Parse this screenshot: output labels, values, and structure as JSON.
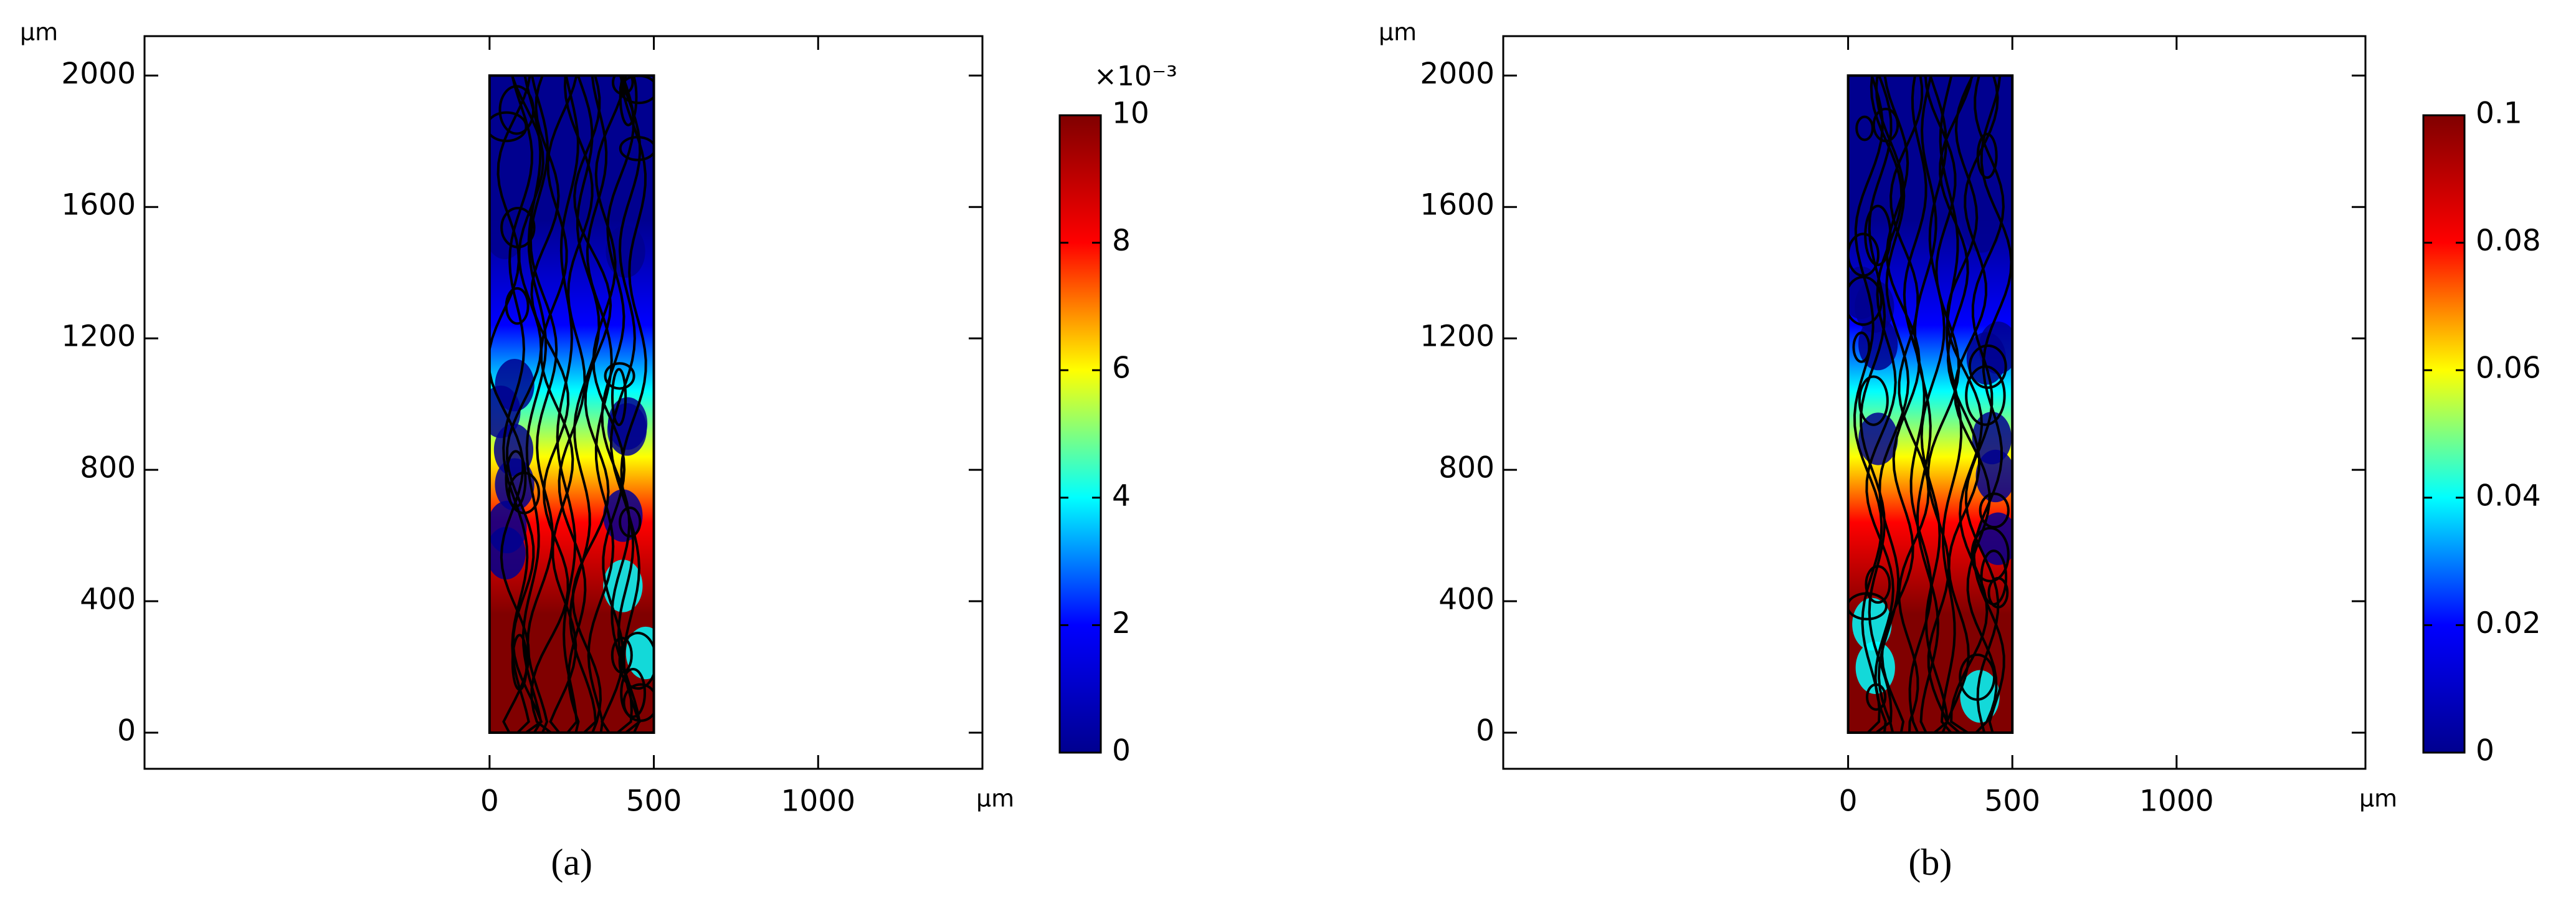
{
  "chart_data": [
    {
      "type": "heatmap",
      "caption": "(a)",
      "xlim": [
        -1050,
        1500
      ],
      "ylim": [
        -110,
        2120
      ],
      "xticks": [
        0,
        500,
        1000
      ],
      "yticks": [
        0,
        400,
        800,
        1200,
        1600,
        2000
      ],
      "x_unit": "μm",
      "y_unit": "μm",
      "colorbar": {
        "lim": [
          0,
          10
        ],
        "ticks": [
          0,
          2,
          4,
          6,
          8,
          10
        ],
        "multiplier": "×10⁻³",
        "colors": [
          "#00008f",
          "#0000ff",
          "#00ffff",
          "#ffff00",
          "#ff0000",
          "#800000"
        ]
      }
    },
    {
      "type": "heatmap",
      "caption": "(b)",
      "xlim": [
        -1050,
        1575
      ],
      "ylim": [
        -110,
        2120
      ],
      "xticks": [
        0,
        500,
        1000
      ],
      "yticks": [
        0,
        400,
        800,
        1200,
        1600,
        2000
      ],
      "x_unit": "μm",
      "y_unit": "μm",
      "colorbar": {
        "lim": [
          0,
          0.1
        ],
        "ticks": [
          0,
          0.02,
          0.04,
          0.06,
          0.08,
          0.1
        ],
        "colors": [
          "#00008f",
          "#0000ff",
          "#00ffff",
          "#ffff00",
          "#ff0000",
          "#800000"
        ]
      }
    }
  ]
}
